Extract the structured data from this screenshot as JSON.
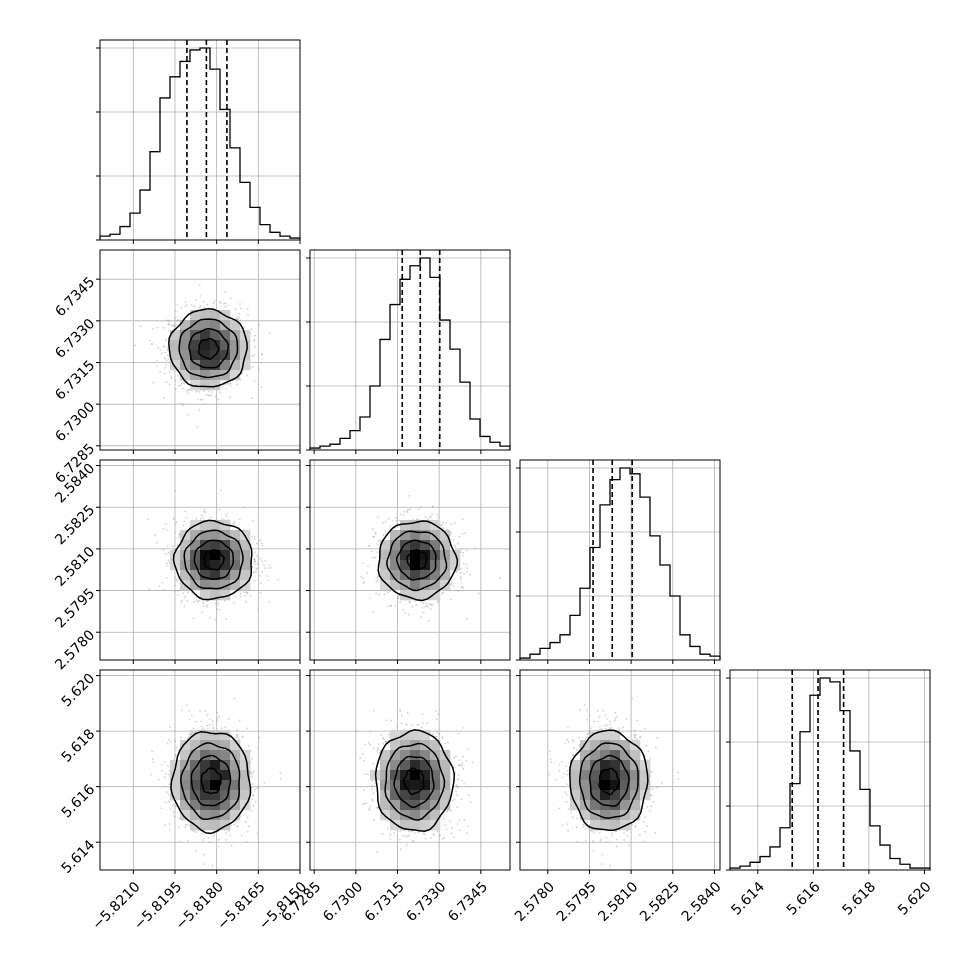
{
  "chart_data": {
    "type": "corner",
    "grid": true,
    "parameters": [
      {
        "range": [
          -5.8222,
          -5.815
        ],
        "ticks": [
          -5.821,
          -5.8195,
          -5.818,
          -5.8165,
          -5.815
        ],
        "tick_labels": [
          "−5.8210",
          "−5.8195",
          "−5.8180",
          "−5.8165",
          "−5.8150"
        ],
        "quantiles": [
          -5.81907,
          -5.81837,
          -5.81763
        ],
        "mean": -5.81837,
        "sigma": 0.0007,
        "hist_counts": [
          2,
          3,
          7,
          14,
          26,
          46,
          74,
          85,
          93,
          99,
          100,
          89,
          68,
          48,
          30,
          17,
          8,
          4,
          2,
          1
        ]
      },
      {
        "range": [
          6.72835,
          6.73555
        ],
        "ticks": [
          6.7285,
          6.73,
          6.7315,
          6.733,
          6.7345
        ],
        "tick_labels": [
          "6.7285",
          "6.7300",
          "6.7315",
          "6.7330",
          "6.7345"
        ],
        "quantiles": [
          6.73167,
          6.73232,
          6.73302
        ],
        "mean": 6.73232,
        "sigma": 0.0007,
        "hist_counts": [
          1,
          2,
          3,
          6,
          10,
          17,
          33,
          57,
          75,
          88,
          95,
          99,
          89,
          67,
          52,
          35,
          16,
          7,
          4,
          2
        ]
      },
      {
        "range": [
          2.577,
          2.5842
        ],
        "ticks": [
          2.578,
          2.5795,
          2.581,
          2.5825,
          2.584
        ],
        "tick_labels": [
          "2.5780",
          "2.5795",
          "2.5810",
          "2.5825",
          "2.5840"
        ],
        "quantiles": [
          2.57963,
          2.58032,
          2.58104
        ],
        "mean": 2.58032,
        "sigma": 0.0007,
        "hist_counts": [
          1,
          3,
          6,
          9,
          13,
          23,
          37,
          58,
          80,
          93,
          99,
          96,
          84,
          64,
          49,
          33,
          13,
          7,
          3,
          2
        ]
      },
      {
        "range": [
          5.613,
          5.6202
        ],
        "ticks": [
          5.614,
          5.616,
          5.618,
          5.62
        ],
        "tick_labels": [
          "5.614",
          "5.616",
          "5.618",
          "5.620"
        ],
        "quantiles": [
          5.61524,
          5.61617,
          5.61709
        ],
        "mean": 5.61617,
        "sigma": 0.0009,
        "hist_counts": [
          1,
          2,
          4,
          7,
          12,
          22,
          45,
          72,
          91,
          100,
          98,
          83,
          62,
          42,
          23,
          13,
          6,
          3,
          1,
          1
        ]
      }
    ],
    "pairs": [
      {
        "x": 0,
        "y": 1,
        "dens_peak": [
          -5.8183,
          6.732
        ]
      },
      {
        "x": 0,
        "y": 2,
        "dens_peak": [
          -5.8181,
          2.5806
        ]
      },
      {
        "x": 1,
        "y": 2,
        "dens_peak": [
          6.7322,
          2.5806
        ]
      },
      {
        "x": 0,
        "y": 3,
        "dens_peak": [
          -5.8182,
          5.6162
        ]
      },
      {
        "x": 1,
        "y": 3,
        "dens_peak": [
          6.7321,
          5.6162
        ]
      },
      {
        "x": 2,
        "y": 3,
        "dens_peak": [
          2.5802,
          5.6162
        ]
      }
    ],
    "contour_sigma_levels": [
      0.5,
      1.0,
      1.5,
      2.0
    ],
    "histogram_tick_count": 4
  }
}
